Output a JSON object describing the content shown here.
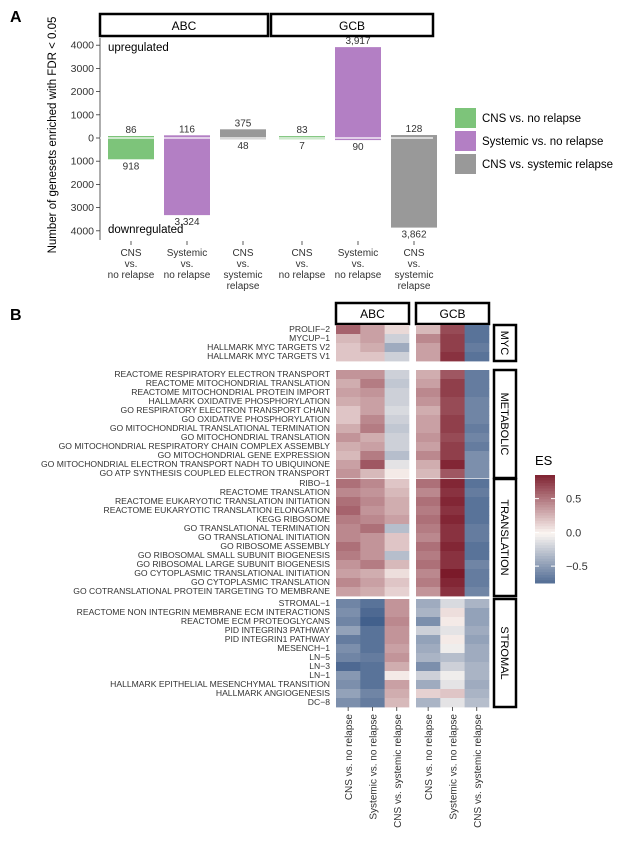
{
  "panelA": {
    "label": "A",
    "ylabel": "Number of genesets enriched with FDR < 0.05",
    "annot_up": "upregulated",
    "annot_down": "downregulated",
    "facets": [
      "ABC",
      "GCB"
    ],
    "y_ticks": [
      {
        "value": 4000,
        "label": "4000"
      },
      {
        "value": 3000,
        "label": "3000"
      },
      {
        "value": 2000,
        "label": "2000"
      },
      {
        "value": 1000,
        "label": "1000"
      },
      {
        "value": 0,
        "label": "0"
      },
      {
        "value": -1000,
        "label": "1000"
      },
      {
        "value": -2000,
        "label": "2000"
      },
      {
        "value": -3000,
        "label": "3000"
      },
      {
        "value": -4000,
        "label": "4000"
      }
    ],
    "x_labels": [
      [
        "CNS",
        "vs.",
        "no relapse"
      ],
      [
        "Systemic",
        "vs.",
        "no relapse"
      ],
      [
        "CNS",
        "vs.",
        "systemic",
        "relapse"
      ]
    ],
    "legend": [
      {
        "label": "CNS vs. no relapse",
        "color": "#7dc47a"
      },
      {
        "label": "Systemic vs. no relapse",
        "color": "#b37fc4"
      },
      {
        "label": "CNS vs. systemic relapse",
        "color": "#999999"
      }
    ]
  },
  "panelB": {
    "label": "B",
    "facets": [
      "ABC",
      "GCB"
    ],
    "x_labels": [
      "CNS vs. no relapse",
      "Systemic vs. no relapse",
      "CNS vs. systemic relapse"
    ],
    "legend_title": "ES",
    "legend_ticks": [
      {
        "value": 0.5,
        "label": "0.5"
      },
      {
        "value": 0.0,
        "label": "0.0"
      },
      {
        "value": -0.5,
        "label": "−0.5"
      }
    ],
    "legend_range": [
      -0.75,
      0.85
    ],
    "colors": {
      "low": "#2b4d7f",
      "mid": "#fbf6f2",
      "high": "#7b1a2a"
    }
  },
  "chart_data": [
    {
      "type": "bar",
      "categories": [
        "CNS vs. no relapse",
        "Systemic vs. no relapse",
        "CNS vs. systemic relapse"
      ],
      "facets": [
        "ABC",
        "GCB"
      ],
      "ylim": [
        -4300,
        4300
      ],
      "series": [
        {
          "facet": "ABC",
          "direction": "upregulated",
          "values": [
            86,
            116,
            375
          ],
          "labels": [
            "86",
            "116",
            "375"
          ]
        },
        {
          "facet": "ABC",
          "direction": "downregulated",
          "values": [
            918,
            3324,
            48
          ],
          "labels": [
            "918",
            "3,324",
            "48"
          ]
        },
        {
          "facet": "GCB",
          "direction": "upregulated",
          "values": [
            83,
            3917,
            128
          ],
          "labels": [
            "83",
            "3,917",
            "128"
          ]
        },
        {
          "facet": "GCB",
          "direction": "downregulated",
          "values": [
            7,
            90,
            3862
          ],
          "labels": [
            "7",
            "90",
            "3,862"
          ]
        }
      ]
    },
    {
      "type": "heatmap",
      "columns": [
        "CNS vs. no relapse",
        "Systemic vs. no relapse",
        "CNS vs. systemic relapse"
      ],
      "groups": [
        {
          "name": "MYC",
          "rows": [
            {
              "label": "PROLIF−2",
              "ABC": [
                0.6,
                0.35,
                0.12
              ],
              "GCB": [
                0.25,
                0.7,
                -0.7
              ]
            },
            {
              "label": "MYCUP−1",
              "ABC": [
                0.25,
                0.35,
                -0.2
              ],
              "GCB": [
                0.45,
                0.75,
                -0.7
              ]
            },
            {
              "label": "HALLMARK MYC TARGETS V2",
              "ABC": [
                0.2,
                0.3,
                -0.4
              ],
              "GCB": [
                0.35,
                0.75,
                -0.65
              ]
            },
            {
              "label": "HALLMARK MYC TARGETS V1",
              "ABC": [
                0.2,
                0.2,
                -0.2
              ],
              "GCB": [
                0.35,
                0.8,
                -0.7
              ]
            }
          ]
        },
        {
          "name": "METABOLIC",
          "rows": [
            {
              "label": "REACTOME RESPIRATORY ELECTRON TRANSPORT",
              "ABC": [
                0.4,
                0.4,
                -0.2
              ],
              "GCB": [
                0.3,
                0.65,
                -0.65
              ]
            },
            {
              "label": "REACTOME MITOCHONDRIAL TRANSLATION",
              "ABC": [
                0.3,
                0.5,
                -0.25
              ],
              "GCB": [
                0.35,
                0.75,
                -0.65
              ]
            },
            {
              "label": "REACTOME MITOCHONDRIAL PROTEIN IMPORT",
              "ABC": [
                0.35,
                0.4,
                -0.2
              ],
              "GCB": [
                0.45,
                0.75,
                -0.65
              ]
            },
            {
              "label": "HALLMARK OXIDATIVE PHOSPHORYLATION",
              "ABC": [
                0.3,
                0.35,
                -0.2
              ],
              "GCB": [
                0.4,
                0.7,
                -0.6
              ]
            },
            {
              "label": "GO RESPIRATORY ELECTRON TRANSPORT CHAIN",
              "ABC": [
                0.2,
                0.35,
                -0.15
              ],
              "GCB": [
                0.3,
                0.7,
                -0.6
              ]
            },
            {
              "label": "GO OXIDATIVE PHOSPHORYLATION",
              "ABC": [
                0.2,
                0.45,
                -0.2
              ],
              "GCB": [
                0.35,
                0.75,
                -0.6
              ]
            },
            {
              "label": "GO MITOCHONDRIAL TRANSLATIONAL TERMINATION",
              "ABC": [
                0.3,
                0.5,
                -0.25
              ],
              "GCB": [
                0.35,
                0.75,
                -0.65
              ]
            },
            {
              "label": "GO MITOCHONDRIAL TRANSLATION",
              "ABC": [
                0.4,
                0.3,
                -0.2
              ],
              "GCB": [
                0.4,
                0.7,
                -0.6
              ]
            },
            {
              "label": "GO MITOCHONDRIAL RESPIRATORY CHAIN COMPLEX ASSEMBLY",
              "ABC": [
                0.3,
                0.35,
                -0.2
              ],
              "GCB": [
                0.35,
                0.75,
                -0.65
              ]
            },
            {
              "label": "GO MITOCHONDRIAL GENE EXPRESSION",
              "ABC": [
                0.25,
                0.5,
                -0.3
              ],
              "GCB": [
                0.45,
                0.75,
                -0.55
              ]
            },
            {
              "label": "GO MITOCHONDRIAL ELECTRON TRANSPORT NADH TO UBIQUINONE",
              "ABC": [
                0.35,
                0.65,
                -0.1
              ],
              "GCB": [
                0.3,
                0.85,
                -0.55
              ]
            },
            {
              "label": "GO ATP SYNTHESIS COUPLED ELECTRON TRANSPORT",
              "ABC": [
                0.4,
                0.25,
                0.05
              ],
              "GCB": [
                0.25,
                0.65,
                -0.55
              ]
            }
          ]
        },
        {
          "name": "TRANSLATION",
          "rows": [
            {
              "label": "RIBO−1",
              "ABC": [
                0.55,
                0.45,
                0.2
              ],
              "GCB": [
                0.55,
                0.85,
                -0.7
              ]
            },
            {
              "label": "REACTOME TRANSLATION",
              "ABC": [
                0.45,
                0.4,
                0.25
              ],
              "GCB": [
                0.45,
                0.8,
                -0.65
              ]
            },
            {
              "label": "REACTOME EUKARYOTIC TRANSLATION INITIATION",
              "ABC": [
                0.55,
                0.45,
                0.3
              ],
              "GCB": [
                0.55,
                0.85,
                -0.7
              ]
            },
            {
              "label": "REACTOME EUKARYOTIC TRANSLATION ELONGATION",
              "ABC": [
                0.6,
                0.4,
                0.3
              ],
              "GCB": [
                0.5,
                0.8,
                -0.7
              ]
            },
            {
              "label": "KEGG RIBOSOME",
              "ABC": [
                0.5,
                0.45,
                0.35
              ],
              "GCB": [
                0.55,
                0.85,
                -0.7
              ]
            },
            {
              "label": "GO TRANSLATIONAL TERMINATION",
              "ABC": [
                0.45,
                0.55,
                -0.3
              ],
              "GCB": [
                0.5,
                0.8,
                -0.65
              ]
            },
            {
              "label": "GO TRANSLATIONAL INITIATION",
              "ABC": [
                0.45,
                0.4,
                0.2
              ],
              "GCB": [
                0.45,
                0.8,
                -0.65
              ]
            },
            {
              "label": "GO RIBOSOME ASSEMBLY",
              "ABC": [
                0.55,
                0.4,
                0.2
              ],
              "GCB": [
                0.55,
                0.85,
                -0.7
              ]
            },
            {
              "label": "GO RIBOSOMAL SMALL SUBUNIT BIOGENESIS",
              "ABC": [
                0.5,
                0.4,
                -0.3
              ],
              "GCB": [
                0.5,
                0.8,
                -0.7
              ]
            },
            {
              "label": "GO RIBOSOMAL LARGE SUBUNIT BIOGENESIS",
              "ABC": [
                0.4,
                0.5,
                0.25
              ],
              "GCB": [
                0.55,
                0.8,
                -0.6
              ]
            },
            {
              "label": "GO CYTOPLASMIC TRANSLATIONAL INITIATION",
              "ABC": [
                0.35,
                0.3,
                0.1
              ],
              "GCB": [
                0.45,
                0.9,
                -0.65
              ]
            },
            {
              "label": "GO CYTOPLASMIC TRANSLATION",
              "ABC": [
                0.45,
                0.35,
                0.2
              ],
              "GCB": [
                0.5,
                0.85,
                -0.65
              ]
            },
            {
              "label": "GO COTRANSLATIONAL PROTEIN TARGETING TO MEMBRANE",
              "ABC": [
                0.35,
                0.3,
                0.15
              ],
              "GCB": [
                0.4,
                0.8,
                -0.6
              ]
            }
          ]
        },
        {
          "name": "STROMAL",
          "rows": [
            {
              "label": "STROMAL−1",
              "ABC": [
                -0.6,
                -0.7,
                0.4
              ],
              "GCB": [
                -0.4,
                -0.15,
                -0.35
              ]
            },
            {
              "label": "REACTOME NON INTEGRIN MEMBRANE ECM INTERACTIONS",
              "ABC": [
                -0.55,
                -0.75,
                0.4
              ],
              "GCB": [
                -0.35,
                0.1,
                -0.45
              ]
            },
            {
              "label": "REACTOME ECM PROTEOGLYCANS",
              "ABC": [
                -0.6,
                -0.8,
                0.45
              ],
              "GCB": [
                -0.55,
                0.05,
                -0.45
              ]
            },
            {
              "label": "PID INTEGRIN3 PATHWAY",
              "ABC": [
                -0.45,
                -0.7,
                0.4
              ],
              "GCB": [
                -0.2,
                -0.1,
                -0.4
              ]
            },
            {
              "label": "PID INTEGRIN1 PATHWAY",
              "ABC": [
                -0.65,
                -0.7,
                0.4
              ],
              "GCB": [
                -0.45,
                0.05,
                -0.45
              ]
            },
            {
              "label": "MESENCH−1",
              "ABC": [
                -0.55,
                -0.7,
                0.35
              ],
              "GCB": [
                -0.4,
                -0.05,
                -0.4
              ]
            },
            {
              "label": "LN−5",
              "ABC": [
                -0.6,
                -0.65,
                0.4
              ],
              "GCB": [
                -0.35,
                -0.3,
                -0.4
              ]
            },
            {
              "label": "LN−3",
              "ABC": [
                -0.75,
                -0.7,
                0.3
              ],
              "GCB": [
                -0.55,
                -0.2,
                -0.35
              ]
            },
            {
              "label": "LN−1",
              "ABC": [
                -0.5,
                -0.7,
                0.05
              ],
              "GCB": [
                -0.2,
                -0.05,
                -0.35
              ]
            },
            {
              "label": "HALLMARK EPITHELIAL MESENCHYMAL TRANSITION",
              "ABC": [
                -0.55,
                -0.7,
                0.35
              ],
              "GCB": [
                -0.4,
                -0.1,
                -0.4
              ]
            },
            {
              "label": "HALLMARK ANGIOGENESIS",
              "ABC": [
                -0.45,
                -0.6,
                0.3
              ],
              "GCB": [
                0.15,
                0.2,
                -0.35
              ]
            },
            {
              "label": "DC−8",
              "ABC": [
                -0.55,
                -0.65,
                0.25
              ],
              "GCB": [
                -0.35,
                -0.1,
                -0.3
              ]
            }
          ]
        }
      ]
    }
  ]
}
